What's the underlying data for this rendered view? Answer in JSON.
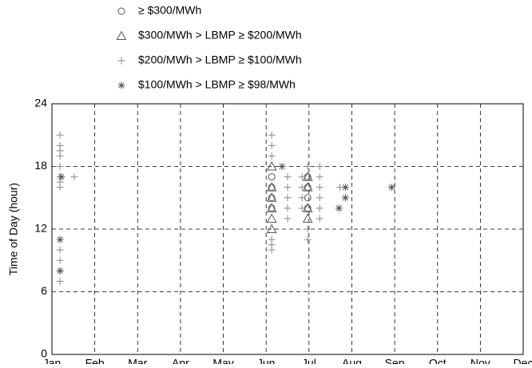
{
  "chart_data": {
    "type": "scatter",
    "ylabel": "Time of Day (hour)",
    "xlim": [
      0,
      11
    ],
    "xticks": [
      {
        "value": 0,
        "label": "Jan"
      },
      {
        "value": 1,
        "label": "Feb"
      },
      {
        "value": 2,
        "label": "Mar"
      },
      {
        "value": 3,
        "label": "Apr"
      },
      {
        "value": 4,
        "label": "May"
      },
      {
        "value": 5,
        "label": "Jun"
      },
      {
        "value": 6,
        "label": "Jul"
      },
      {
        "value": 7,
        "label": "Aug"
      },
      {
        "value": 8,
        "label": "Sep"
      },
      {
        "value": 9,
        "label": "Oct"
      },
      {
        "value": 10,
        "label": "Nov"
      },
      {
        "value": 11,
        "label": "Dec"
      }
    ],
    "ylim": [
      0,
      24
    ],
    "yticks": [
      0,
      6,
      12,
      18,
      24
    ],
    "grid": true,
    "legend": "top",
    "series": [
      {
        "name": "≥ $300/MWh",
        "marker": "circle",
        "color": "#555555",
        "x": [
          5.13,
          5.13,
          5.13,
          5.13,
          5.97,
          5.97,
          5.97,
          5.97
        ],
        "values": [
          14,
          15,
          16,
          17,
          14,
          15,
          16,
          17
        ]
      },
      {
        "name": "$300/MWh > LBMP ≥ $200/MWh",
        "marker": "triangle",
        "color": "#555555",
        "x": [
          5.13,
          5.13,
          5.13,
          5.13,
          5.13,
          5.13,
          5.97,
          5.97,
          5.97,
          5.97
        ],
        "values": [
          12,
          13,
          14,
          15,
          16,
          18,
          13,
          14,
          16,
          17
        ]
      },
      {
        "name": "$200/MWh > LBMP ≥ $100/MWh",
        "marker": "plus",
        "color": "#888888",
        "x": [
          0.19,
          0.19,
          0.19,
          0.19,
          0.19,
          0.19,
          0.19,
          0.19,
          0.19,
          0.19,
          0.19,
          0.19,
          0.52,
          5.13,
          5.13,
          5.13,
          5.13,
          5.13,
          5.13,
          5.5,
          5.5,
          5.5,
          5.5,
          5.5,
          5.84,
          5.84,
          5.84,
          5.84,
          5.97,
          5.97,
          5.97,
          6.25,
          6.25,
          6.25,
          6.25,
          6.25,
          6.25,
          6.72
        ],
        "values": [
          7,
          8,
          9,
          10,
          16,
          16.5,
          17,
          18,
          19,
          19.5,
          20,
          21,
          17,
          10,
          10.5,
          11,
          19,
          20,
          21,
          13,
          14,
          15,
          16,
          17,
          14,
          15,
          16,
          17,
          11,
          12,
          18,
          13,
          14,
          15,
          16,
          17,
          18,
          16
        ]
      },
      {
        "name": "$100/MWh > LBMP ≥ $98/MWh",
        "marker": "asterisk",
        "color": "#555555",
        "x": [
          0.19,
          0.19,
          0.22,
          5.37,
          6.7,
          6.85,
          6.85,
          7.93
        ],
        "values": [
          8,
          11,
          17,
          18,
          14,
          15,
          16,
          16
        ]
      }
    ]
  }
}
